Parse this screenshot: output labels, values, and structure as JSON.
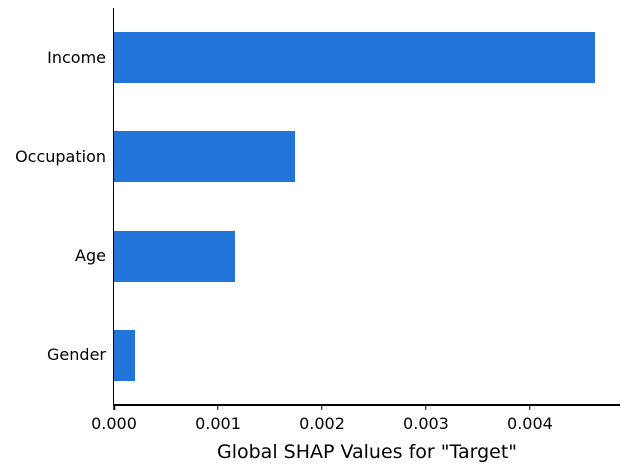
{
  "chart_data": {
    "type": "bar",
    "orientation": "horizontal",
    "title": "",
    "xlabel": "Global SHAP Values for \"Target\"",
    "ylabel": "",
    "categories": [
      "Income",
      "Occupation",
      "Age",
      "Gender"
    ],
    "values": [
      0.00463,
      0.00174,
      0.00116,
      0.0002
    ],
    "xlim": [
      0,
      0.004866
    ],
    "xticks": [
      0,
      0.001,
      0.002,
      0.003,
      0.004
    ],
    "xtick_labels": [
      "0.000",
      "0.001",
      "0.002",
      "0.003",
      "0.004"
    ],
    "bar_color": "#2274D8",
    "axis_color": "#000000",
    "background_color": "#ffffff",
    "grid": false,
    "legend": null
  }
}
